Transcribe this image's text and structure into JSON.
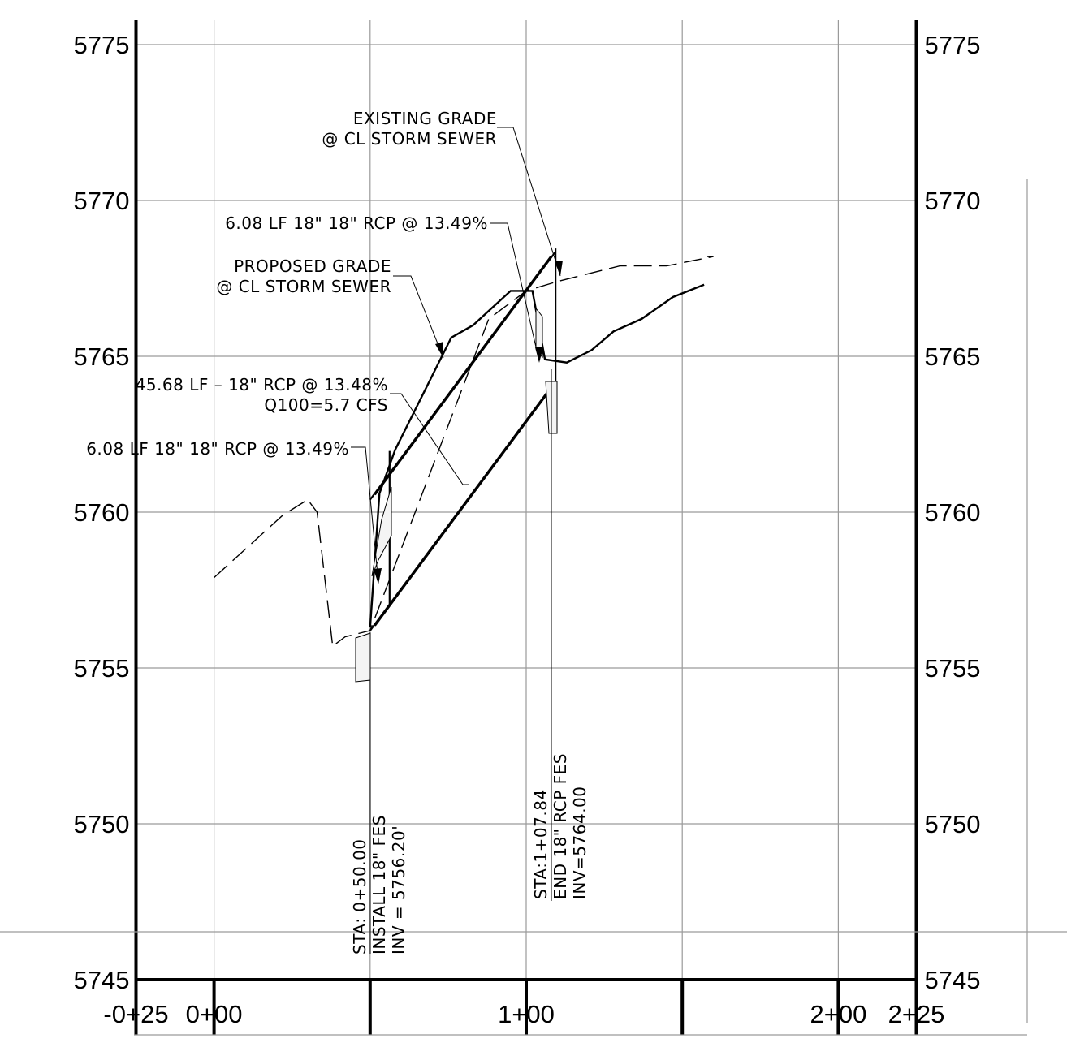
{
  "chart_data": {
    "type": "profile",
    "y_axis": {
      "ticks": [
        "5775",
        "5770",
        "5765",
        "5760",
        "5755",
        "5750",
        "5745"
      ],
      "ylim": [
        5745,
        5775
      ],
      "step": 5
    },
    "x_axis": {
      "ticks": [
        "-0+25",
        "0+00",
        "1+00",
        "2+00",
        "2+25"
      ],
      "xlim": [
        -25,
        225
      ],
      "grid_step": 50
    },
    "existing_grade": {
      "points": [
        [
          0,
          5757.9
        ],
        [
          22,
          5759.9
        ],
        [
          30,
          5760.4
        ],
        [
          33,
          5760.0
        ],
        [
          38,
          5755.7
        ],
        [
          42,
          5756.0
        ],
        [
          50,
          5756.2
        ],
        [
          88,
          5766.2
        ],
        [
          100,
          5767.1
        ],
        [
          110,
          5767.4
        ],
        [
          130,
          5767.9
        ],
        [
          145,
          5767.9
        ],
        [
          160,
          5768.2
        ],
        [
          158,
          5768.2
        ]
      ]
    },
    "proposed_grade": {
      "points": [
        [
          50,
          5756.3
        ],
        [
          53,
          5760.6
        ],
        [
          58,
          5762.0
        ],
        [
          76,
          5765.6
        ],
        [
          83,
          5766.0
        ],
        [
          95,
          5767.1
        ],
        [
          102,
          5767.1
        ],
        [
          106,
          5764.9
        ],
        [
          113,
          5764.8
        ],
        [
          121,
          5765.2
        ],
        [
          128,
          5765.8
        ],
        [
          137,
          5766.2
        ],
        [
          147,
          5766.9
        ],
        [
          157,
          5767.3
        ]
      ]
    },
    "pipe": {
      "start_station": 50.0,
      "start_invert": 5756.2,
      "end_station": 107.84,
      "end_invert": 5764.0,
      "diameter_ft": 1.5
    }
  },
  "annotations": {
    "existing_grade": [
      "EXISTING GRADE",
      "@ CL STORM SEWER"
    ],
    "short_pipe_top": "6.08 LF 18\" 18\" RCP @ 13.49%",
    "proposed_grade": [
      "PROPOSED GRADE",
      "@ CL STORM SEWER"
    ],
    "main_pipe": [
      "45.68 LF – 18\" RCP @ 13.48%",
      "Q100=5.7 CFS"
    ],
    "short_pipe_bottom": "6.08 LF 18\" 18\" RCP @ 13.49%",
    "start_station": [
      "STA: 0+50.00",
      "INSTALL 18\" FES",
      "INV = 5756.20'"
    ],
    "end_station": [
      "STA:1+07.84",
      "END 18\" RCP FES",
      "INV=5764.00"
    ]
  }
}
